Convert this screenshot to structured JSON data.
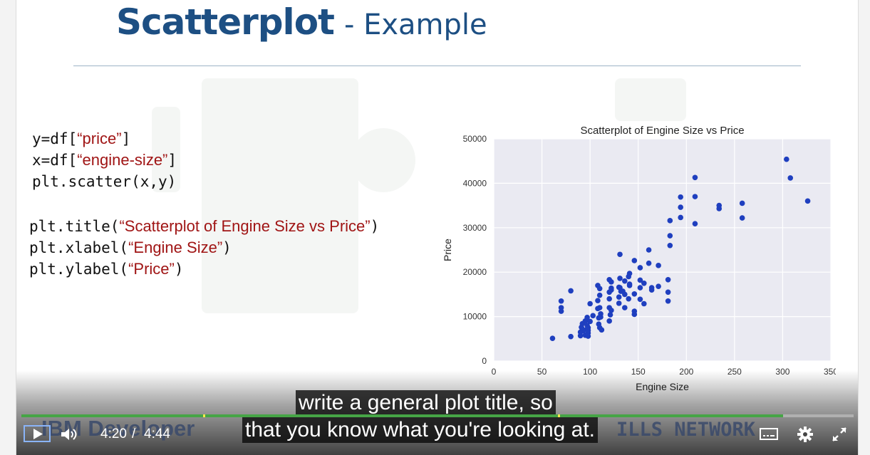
{
  "slide": {
    "title_main": "Scatterplot",
    "title_sub": "- Example",
    "code_lines_1": [
      {
        "pre": "y=df[",
        "str": "“price”",
        "post": "]"
      },
      {
        "pre": "x=df[",
        "str": "“engine-size”",
        "post": "]"
      },
      {
        "pre": "plt.scatter(x,y)",
        "str": "",
        "post": ""
      }
    ],
    "code_lines_2": [
      {
        "pre": "plt.title(",
        "str": "“Scatterplot of Engine Size vs Price”",
        "post": ")"
      },
      {
        "pre": "plt.xlabel(",
        "str": "“Engine Size”",
        "post": ")"
      },
      {
        "pre": "plt.ylabel(",
        "str": "“Price”",
        "post": ")"
      }
    ],
    "footer_left": "IBM Developer",
    "footer_right": "ILLS NETWORK"
  },
  "chart_data": {
    "type": "scatter",
    "title": "Scatterplot of Engine Size vs Price",
    "xlabel": "Engine Size",
    "ylabel": "Price",
    "xlim": [
      0,
      350
    ],
    "ylim": [
      0,
      50000
    ],
    "xticks": [
      "0",
      "50",
      "100",
      "150",
      "200",
      "250",
      "300",
      "350"
    ],
    "yticks": [
      "0",
      "10000",
      "20000",
      "30000",
      "40000",
      "50000"
    ],
    "grid": true,
    "point_color": "#1f3fbf",
    "x": [
      61,
      70,
      70,
      70,
      80,
      80,
      90,
      90,
      91,
      92,
      92,
      93,
      95,
      95,
      97,
      97,
      97,
      98,
      98,
      98,
      98,
      100,
      100,
      103,
      108,
      108,
      108,
      109,
      109,
      110,
      110,
      110,
      110,
      111,
      111,
      112,
      120,
      120,
      120,
      120,
      120,
      121,
      122,
      122,
      122,
      122,
      130,
      130,
      130,
      131,
      131,
      131,
      132,
      134,
      136,
      136,
      136,
      140,
      140,
      141,
      141,
      141,
      146,
      146,
      146,
      146,
      152,
      152,
      152,
      152,
      156,
      156,
      161,
      161,
      164,
      164,
      171,
      171,
      181,
      181,
      181,
      183,
      183,
      183,
      194,
      194,
      194,
      209,
      209,
      209,
      234,
      234,
      258,
      258,
      304,
      308,
      326
    ],
    "y": [
      5100,
      13500,
      12000,
      11200,
      5500,
      15800,
      5700,
      6500,
      7600,
      8400,
      7200,
      6800,
      5800,
      9000,
      9800,
      7200,
      8000,
      6300,
      6900,
      7500,
      5600,
      8900,
      12900,
      10200,
      17000,
      13600,
      11800,
      8300,
      9700,
      12000,
      14800,
      16300,
      7500,
      10600,
      9900,
      7000,
      9000,
      12000,
      14000,
      15500,
      18300,
      10400,
      11400,
      16400,
      17800,
      16000,
      13000,
      14400,
      16600,
      24000,
      18600,
      16500,
      15700,
      15700,
      15000,
      18000,
      12000,
      19000,
      14000,
      19700,
      17000,
      17300,
      22600,
      15100,
      11200,
      10500,
      13900,
      18200,
      16500,
      21000,
      12900,
      17500,
      25000,
      22000,
      16000,
      16500,
      21500,
      16800,
      13500,
      18300,
      15500,
      28200,
      26000,
      31600,
      34600,
      32300,
      36900,
      37000,
      41300,
      30900,
      34300,
      35000,
      35500,
      32200,
      45400,
      41200,
      36000
    ]
  },
  "caption": {
    "line1": "write a general plot title, so",
    "line2": "that you know what you're looking at."
  },
  "player": {
    "current_time": "4:20",
    "separator": "/",
    "duration": "4:44",
    "progress": 0.915,
    "buffer_marker": 0.218,
    "accent": "#46a546"
  }
}
